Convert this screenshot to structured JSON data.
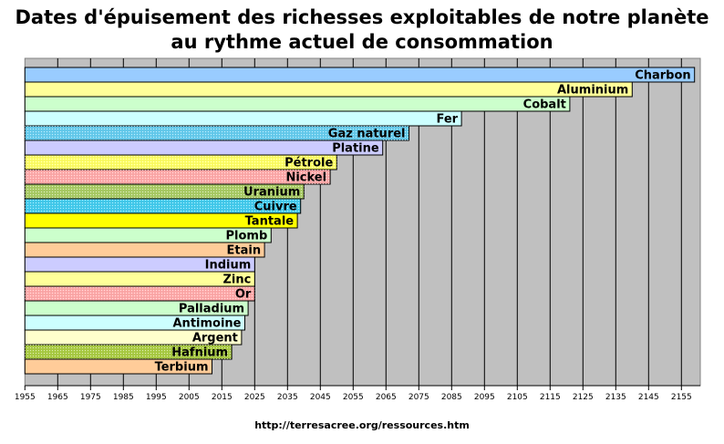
{
  "chart_data": {
    "type": "bar",
    "orientation": "horizontal",
    "title": "Dates d'épuisement des richesses exploitables de notre planète au rythme actuel de consommation",
    "xlabel": "",
    "ylabel": "",
    "xlim": [
      1955,
      2160
    ],
    "grid": true,
    "xticks": [
      1955,
      1965,
      1975,
      1985,
      1995,
      2005,
      2015,
      2025,
      2035,
      2045,
      2055,
      2065,
      2075,
      2085,
      2095,
      2105,
      2115,
      2125,
      2135,
      2145,
      2155
    ],
    "categories": [
      "Charbon",
      "Aluminium",
      "Cobalt",
      "Fer",
      "Gaz naturel",
      "Platine",
      "Pétrole",
      "Nickel",
      "Uranium",
      "Cuivre",
      "Tantale",
      "Plomb",
      "Etain",
      "Indium",
      "Zinc",
      "Or",
      "Palladium",
      "Antimoine",
      "Argent",
      "Hafnium",
      "Terbium"
    ],
    "values": [
      2159,
      2140,
      2121,
      2088,
      2072,
      2064,
      2050,
      2048,
      2040,
      2039,
      2038,
      2030,
      2028,
      2025,
      2025,
      2025,
      2023,
      2022,
      2021,
      2018,
      2012
    ],
    "colors": [
      "#99ccff",
      "#ffff99",
      "#ccffcc",
      "#ccffff",
      "#66ccee",
      "#ccccff",
      "#ffff66",
      "#ffaaaa",
      "#aacc66",
      "#44ccee",
      "#ffff00",
      "#ccffcc",
      "#ffcc99",
      "#ccccff",
      "#ffff99",
      "#ffaaaa",
      "#ccffcc",
      "#ccffff",
      "#ffffcc",
      "#aacc44",
      "#ffcc99"
    ],
    "dotted": [
      false,
      false,
      false,
      false,
      true,
      false,
      true,
      true,
      true,
      true,
      false,
      false,
      false,
      false,
      false,
      true,
      false,
      false,
      false,
      true,
      false
    ],
    "plot_background": "#c0c0c0"
  },
  "source": "http://terresacree.org/ressources.htm"
}
